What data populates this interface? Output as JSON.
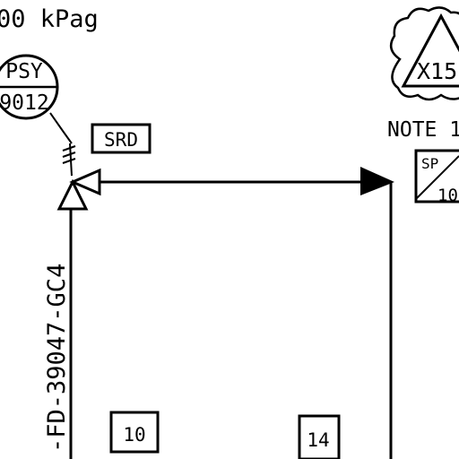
{
  "pressure_label": "00 kPag",
  "instrument": {
    "tag_line1": "PSY",
    "tag_line2": "9012"
  },
  "srd_box": "SRD",
  "revision_flag": "X15",
  "note_label": "NOTE 1",
  "sp_box": {
    "top": "SP",
    "bottom": "10"
  },
  "line_number": "-FD-39047-GC4",
  "box_left": "10",
  "box_right": "14",
  "colors": {
    "ink": "#000000",
    "paper": "#ffffff"
  }
}
